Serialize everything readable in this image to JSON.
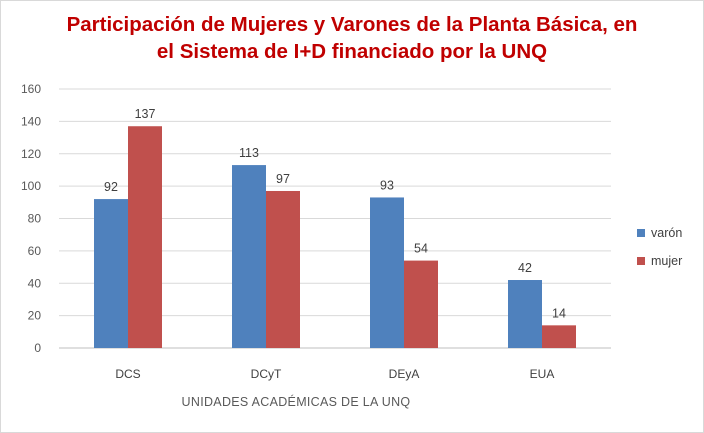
{
  "chart_data": {
    "type": "bar",
    "title": [
      "Participación de Mujeres y Varones de la Planta Básica, en",
      "el Sistema de I+D financiado por la UNQ"
    ],
    "xlabel": "UNIDADES ACADÉMICAS DE LA UNQ",
    "ylabel": "",
    "categories": [
      "DCS",
      "DCyT",
      "DEyA",
      "EUA"
    ],
    "series": [
      {
        "name": "varón",
        "values": [
          92,
          113,
          93,
          42
        ],
        "color": "#4f81bd"
      },
      {
        "name": "mujer",
        "values": [
          137,
          97,
          54,
          14
        ],
        "color": "#c0504d"
      }
    ],
    "ylim": [
      0,
      160
    ],
    "yticks": [
      0,
      20,
      40,
      60,
      80,
      100,
      120,
      140,
      160
    ],
    "grid": true,
    "legend": "right"
  }
}
